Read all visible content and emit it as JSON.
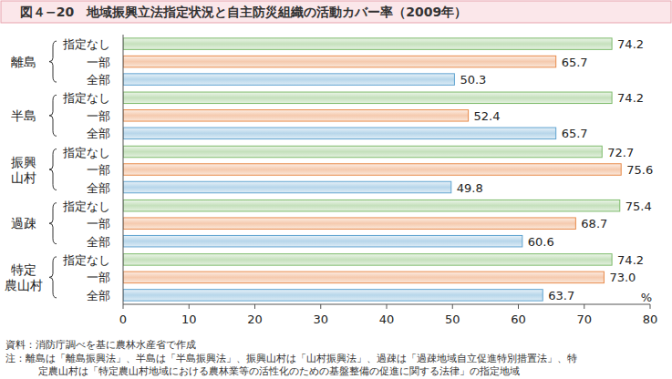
{
  "chart_data": {
    "type": "bar",
    "orientation": "horizontal",
    "title": "図４−20　地域振興立法指定状況と自主防災組織の活動カバー率（2009年）",
    "categories": [
      "離島",
      "半島",
      "振興\n山村",
      "過疎",
      "特定\n農山村"
    ],
    "series": [
      {
        "name": "指定なし",
        "color": "#7dbb6a",
        "values": [
          74.2,
          74.2,
          72.7,
          75.4,
          74.2
        ],
        "value_labels": [
          "74.2",
          "74.2",
          "72.7",
          "75.4",
          "74.2"
        ]
      },
      {
        "name": "一部",
        "color": "#e88a4a",
        "values": [
          65.7,
          52.4,
          75.6,
          68.7,
          73.0
        ],
        "value_labels": [
          "65.7",
          "52.4",
          "75.6",
          "68.7",
          "73.0"
        ]
      },
      {
        "name": "全部",
        "color": "#5fa3d0",
        "values": [
          50.3,
          65.7,
          49.8,
          60.6,
          63.7
        ],
        "value_labels": [
          "50.3",
          "65.7",
          "49.8",
          "60.6",
          "63.7"
        ]
      }
    ],
    "x_label": "%",
    "xlim": [
      0,
      80
    ],
    "xticks": [
      0,
      10,
      20,
      30,
      40,
      50,
      60,
      70,
      80
    ],
    "grid": false,
    "data_labels": true,
    "source": "資料：消防庁調べを基に農林水産省で作成",
    "notes": [
      "注：離島は「離島振興法」、半島は「半島振興法」、振興山村は「山村振興法」、過疎は「過疎地域自立促進特別措置法」、特",
      "定農山村は「特定農山村地域における農林業等の活性化のための基盤整備の促進に関する法律」の指定地域"
    ]
  }
}
